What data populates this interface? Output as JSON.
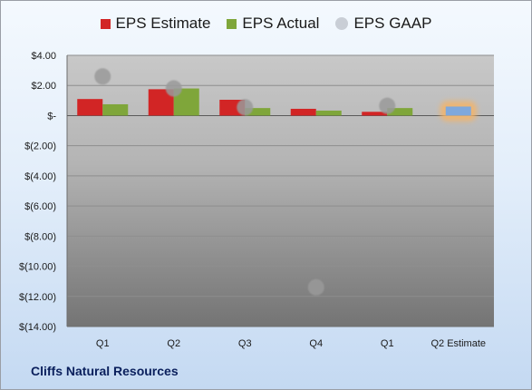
{
  "chart_data": {
    "type": "bar",
    "categories": [
      "Q1",
      "Q2",
      "Q3",
      "Q4",
      "Q1",
      "Q2 Estimate"
    ],
    "series": [
      {
        "name": "EPS Estimate",
        "values": [
          1.1,
          1.75,
          1.05,
          0.45,
          0.25,
          null
        ],
        "color": "#d22525"
      },
      {
        "name": "EPS Actual",
        "values": [
          0.75,
          1.8,
          0.5,
          0.33,
          0.5,
          0.6
        ],
        "color": "#7fa63a"
      },
      {
        "name": "EPS GAAP",
        "values": [
          2.6,
          1.8,
          0.55,
          -11.4,
          0.65,
          null
        ],
        "color": "#b2b2b2"
      }
    ],
    "highlight": {
      "category": "Q2 Estimate",
      "bar_color": "#7fa8dc",
      "glow_color": "#f5b466"
    },
    "ylim": [
      -14,
      4
    ],
    "yticks": [
      4,
      2,
      0,
      -2,
      -4,
      -6,
      -8,
      -10,
      -12,
      -14
    ],
    "ytick_labels": [
      "$4.00",
      "$2.00",
      "$-",
      "$(2.00)",
      "$(4.00)",
      "$(6.00)",
      "$(8.00)",
      "$(10.00)",
      "$(12.00)",
      "$(14.00)"
    ],
    "legend_position": "top",
    "grid": true,
    "plot_gradient": [
      "#c8c8c8",
      "#747474"
    ]
  },
  "footer": {
    "company": "Cliffs Natural Resources"
  }
}
